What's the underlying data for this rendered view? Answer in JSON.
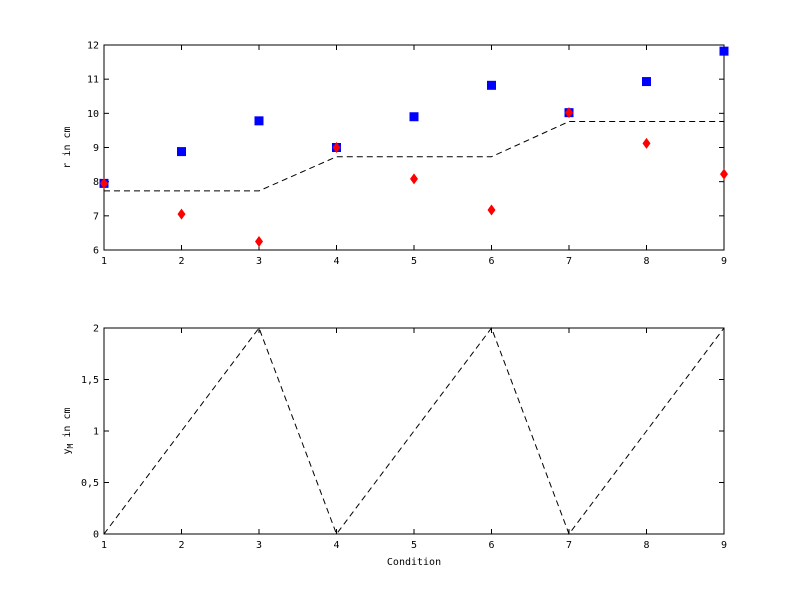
{
  "chart_data": [
    {
      "type": "scatter",
      "title": "",
      "xlabel": "",
      "ylabel": "r in cm",
      "xlim": [
        1,
        9
      ],
      "ylim": [
        6,
        12
      ],
      "xticks": [
        1,
        2,
        3,
        4,
        5,
        6,
        7,
        8,
        9
      ],
      "yticks": [
        6,
        7,
        8,
        9,
        10,
        11,
        12
      ],
      "grid": false,
      "series": [
        {
          "marker": "square",
          "color": "#0000ff",
          "x": [
            1,
            2,
            3,
            4,
            5,
            6,
            7,
            8,
            9
          ],
          "y": [
            7.95,
            8.88,
            9.78,
            9.0,
            9.9,
            10.82,
            10.02,
            10.93,
            11.82
          ]
        },
        {
          "marker": "diamond",
          "color": "#ff0000",
          "x": [
            1,
            2,
            3,
            4,
            5,
            6,
            7,
            8,
            9
          ],
          "y": [
            7.95,
            7.05,
            6.25,
            9.0,
            8.08,
            7.17,
            10.02,
            9.12,
            8.22
          ]
        },
        {
          "marker": "dashed-line",
          "color": "#000000",
          "x": [
            1,
            2,
            3,
            4,
            5,
            6,
            7,
            8,
            9
          ],
          "y": [
            7.73,
            7.73,
            7.73,
            8.73,
            8.73,
            8.73,
            9.76,
            9.76,
            9.76
          ]
        }
      ]
    },
    {
      "type": "line",
      "title": "",
      "xlabel": "Condition",
      "ylabel": "y",
      "ylabel_sub": "M",
      "ylabel_rest": " in cm",
      "xlim": [
        1,
        9
      ],
      "ylim": [
        0,
        2
      ],
      "xticks": [
        1,
        2,
        3,
        4,
        5,
        6,
        7,
        8,
        9
      ],
      "yticks": [
        0,
        0.5,
        1,
        1.5,
        2
      ],
      "ytick_labels": [
        "0",
        "0,5",
        "1",
        "1,5",
        "2"
      ],
      "grid": false,
      "series": [
        {
          "style": "dashed",
          "color": "#000000",
          "x": [
            1,
            2,
            3,
            4,
            5,
            6,
            7,
            8,
            9
          ],
          "y": [
            0,
            1,
            2,
            0,
            1,
            2,
            0,
            1,
            2
          ]
        }
      ]
    }
  ]
}
